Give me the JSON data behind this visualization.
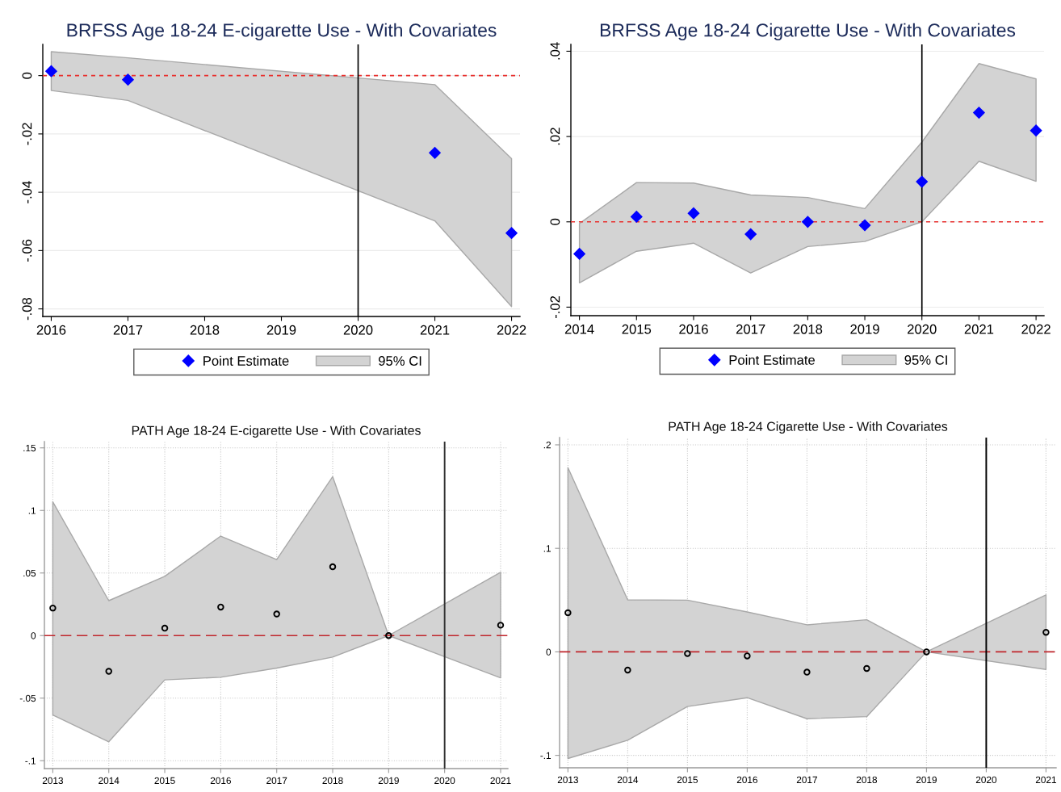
{
  "chart_data": [
    {
      "type": "scatter",
      "title": "BRFSS Age 18-24 E-cigarette Use - With Covariates",
      "marker": "diamond",
      "legend": "bottom",
      "grid": "y",
      "series": [
        {
          "name": "Point Estimate",
          "color": "#0000ff",
          "x": [
            2016,
            2017,
            2021,
            2022
          ],
          "values": [
            0.0015,
            -0.0014,
            -0.0265,
            -0.054
          ]
        },
        {
          "name": "95% CI",
          "type": "area",
          "color": "#d3d3d3",
          "x": [
            2016,
            2017,
            2021,
            2022
          ],
          "values": [
            null,
            null,
            null,
            null
          ],
          "lower": [
            -0.0051,
            -0.0085,
            -0.0498,
            -0.0792
          ],
          "upper": [
            0.0082,
            0.0061,
            -0.0031,
            -0.0285
          ]
        }
      ],
      "xlim": [
        2015.89,
        2022.11
      ],
      "xticks": [
        2016,
        2017,
        2018,
        2019,
        2020,
        2021,
        2022
      ],
      "ylim": [
        -0.0826,
        0.0107
      ],
      "yticks": [
        {
          "value": -0.08,
          "label": "-.08"
        },
        {
          "value": -0.06,
          "label": "-.06"
        },
        {
          "value": -0.04,
          "label": "-.04"
        },
        {
          "value": -0.02,
          "label": "-.02"
        },
        0
      ],
      "ref_lines": [
        {
          "axis": "y",
          "value": 0,
          "color": "#e8302e",
          "line_style": "dashed"
        },
        {
          "axis": "x",
          "value": 2020,
          "color": "#000000",
          "line_style": "solid"
        }
      ]
    },
    {
      "type": "scatter",
      "title": "BRFSS Age 18-24 Cigarette Use - With Covariates",
      "marker": "diamond",
      "legend": "bottom",
      "grid": "y",
      "series": [
        {
          "name": "Point Estimate",
          "color": "#0000ff",
          "x": [
            2014,
            2015,
            2016,
            2017,
            2018,
            2019,
            2020,
            2021,
            2022
          ],
          "values": [
            -0.0075,
            0.0012,
            0.002,
            -0.0029,
            0,
            -0.0008,
            0.0094,
            0.0256,
            0.0214
          ]
        },
        {
          "name": "95% CI",
          "type": "area",
          "color": "#d3d3d3",
          "x": [
            2014,
            2015,
            2016,
            2017,
            2018,
            2019,
            2020,
            2021,
            2022
          ],
          "values": [
            null,
            null,
            null,
            null,
            null,
            null,
            null,
            null,
            null
          ],
          "lower": [
            -0.0143,
            -0.0069,
            -0.005,
            -0.012,
            -0.0058,
            -0.0046,
            0,
            0.0142,
            0.0095
          ],
          "upper": [
            -0.0004,
            0.0092,
            0.0091,
            0.0063,
            0.0057,
            0.0031,
            0.0187,
            0.0371,
            0.0335
          ]
        }
      ],
      "xlim": [
        2013.85,
        2022.14
      ],
      "xticks": [
        2014,
        2015,
        2016,
        2017,
        2018,
        2019,
        2020,
        2021,
        2022
      ],
      "ylim": [
        -0.022,
        0.0416
      ],
      "yticks": [
        {
          "value": -0.02,
          "label": "-.02"
        },
        0,
        {
          "value": 0.02,
          "label": ".02"
        },
        {
          "value": 0.04,
          "label": ".04"
        }
      ],
      "ref_lines": [
        {
          "axis": "y",
          "value": 0,
          "color": "#e8302e",
          "line_style": "dashed"
        },
        {
          "axis": "x",
          "value": 2020,
          "color": "#000000",
          "line_style": "solid"
        }
      ]
    },
    {
      "type": "scatter",
      "title": "PATH Age 18-24 E-cigarette Use - With Covariates",
      "marker": "circle",
      "grid": true,
      "series": [
        {
          "color": "#000000",
          "x": [
            2013,
            2014,
            2015,
            2016,
            2017,
            2018,
            2019,
            2021
          ],
          "values": [
            0.022,
            -0.0285,
            0.0059,
            0.0228,
            0.0172,
            0.055,
            0,
            0.0083
          ]
        },
        {
          "type": "area",
          "color": "#d3d3d3",
          "x": [
            2013,
            2014,
            2015,
            2016,
            2017,
            2018,
            2019,
            2021
          ],
          "values": [
            null,
            null,
            null,
            null,
            null,
            null,
            null,
            null
          ],
          "lower": [
            -0.0634,
            -0.0849,
            -0.0354,
            -0.0333,
            -0.026,
            -0.0172,
            0,
            -0.0338
          ],
          "upper": [
            0.1069,
            0.0279,
            0.0473,
            0.0795,
            0.0607,
            0.127,
            0,
            0.0505
          ]
        }
      ],
      "xlim": [
        2012.85,
        2021.13
      ],
      "xticks": [
        2013,
        2014,
        2015,
        2016,
        2017,
        2018,
        2019,
        2020,
        2021
      ],
      "ylim": [
        -0.1063,
        0.155
      ],
      "yticks": [
        {
          "value": -0.1,
          "label": "-.1"
        },
        {
          "value": -0.05,
          "label": "-.05"
        },
        0,
        {
          "value": 0.05,
          "label": ".05"
        },
        {
          "value": 0.1,
          "label": ".1"
        },
        {
          "value": 0.15,
          "label": ".15"
        }
      ],
      "ref_lines": [
        {
          "axis": "y",
          "value": 0,
          "color": "#c0272d",
          "line_style": "dashed"
        },
        {
          "axis": "x",
          "value": 2020,
          "color": "#333333",
          "line_style": "solid"
        }
      ]
    },
    {
      "type": "scatter",
      "title": "PATH Age 18-24 Cigarette Use - With Covariates",
      "marker": "circle",
      "grid": true,
      "series": [
        {
          "color": "#000000",
          "x": [
            2013,
            2014,
            2015,
            2016,
            2017,
            2018,
            2019,
            2021
          ],
          "values": [
            0.0378,
            -0.0176,
            -0.0016,
            -0.0039,
            -0.0196,
            -0.016,
            0,
            0.0189
          ]
        },
        {
          "type": "area",
          "color": "#d3d3d3",
          "x": [
            2013,
            2014,
            2015,
            2016,
            2017,
            2018,
            2019,
            2021
          ],
          "values": [
            null,
            null,
            null,
            null,
            null,
            null,
            null,
            null
          ],
          "lower": [
            -0.103,
            -0.0854,
            -0.0528,
            -0.0443,
            -0.0646,
            -0.0626,
            0,
            -0.017
          ],
          "upper": [
            0.178,
            0.0502,
            0.0499,
            0.0385,
            0.0261,
            0.031,
            0,
            0.0551
          ]
        }
      ],
      "xlim": [
        2012.86,
        2021.17
      ],
      "xticks": [
        2013,
        2014,
        2015,
        2016,
        2017,
        2018,
        2019,
        2020,
        2021
      ],
      "ylim": [
        -0.112,
        0.207
      ],
      "yticks": [
        {
          "value": -0.1,
          "label": "-.1"
        },
        0,
        {
          "value": 0.1,
          "label": ".1"
        },
        {
          "value": 0.2,
          "label": ".2"
        }
      ],
      "ref_lines": [
        {
          "axis": "y",
          "value": 0,
          "color": "#c0272d",
          "line_style": "dashed"
        },
        {
          "axis": "x",
          "value": 2020,
          "color": "#000000",
          "line_style": "solid"
        }
      ]
    }
  ]
}
